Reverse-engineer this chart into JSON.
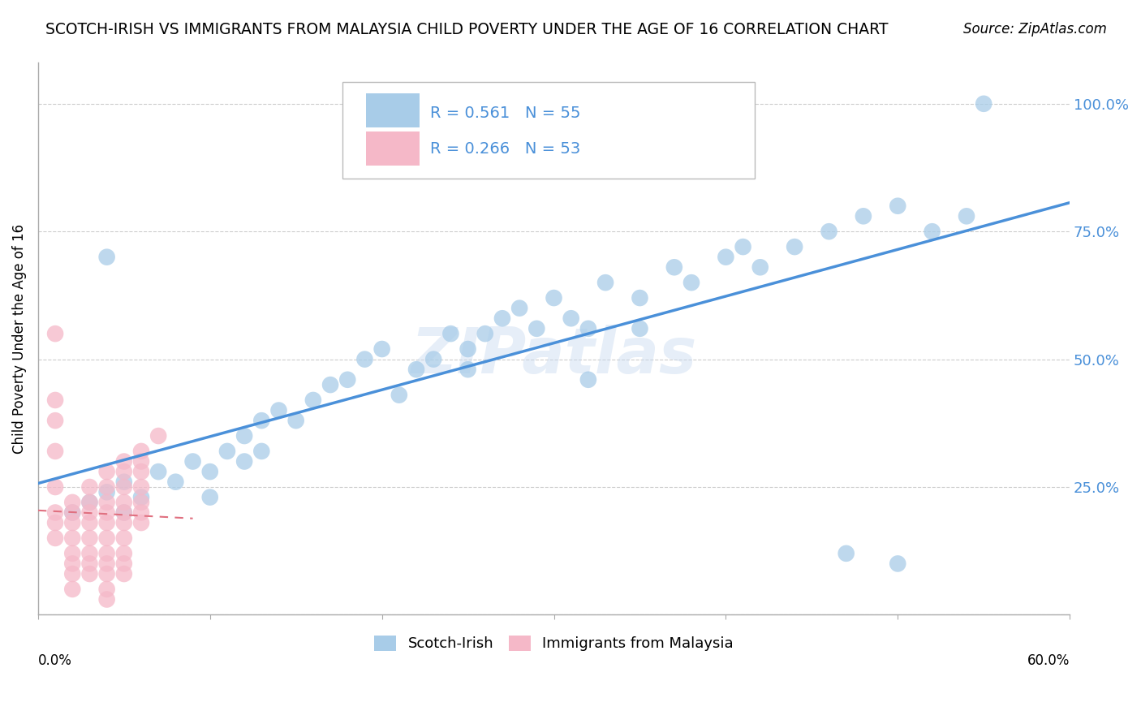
{
  "title": "SCOTCH-IRISH VS IMMIGRANTS FROM MALAYSIA CHILD POVERTY UNDER THE AGE OF 16 CORRELATION CHART",
  "source": "Source: ZipAtlas.com",
  "ylabel": "Child Poverty Under the Age of 16",
  "xlim": [
    0.0,
    0.6
  ],
  "ylim": [
    0.0,
    1.08
  ],
  "yticks": [
    0.0,
    0.25,
    0.5,
    0.75,
    1.0
  ],
  "ytick_labels": [
    "",
    "25.0%",
    "50.0%",
    "75.0%",
    "100.0%"
  ],
  "blue_R": 0.561,
  "blue_N": 55,
  "pink_R": 0.266,
  "pink_N": 53,
  "legend_label_blue": "Scotch-Irish",
  "legend_label_pink": "Immigrants from Malaysia",
  "blue_color": "#a8cce8",
  "pink_color": "#f5b8c8",
  "blue_line_color": "#4a90d9",
  "pink_line_color": "#e07080",
  "tick_color": "#4a90d9",
  "watermark": "ZIPatlas",
  "blue_scatter_x": [
    0.02,
    0.03,
    0.04,
    0.05,
    0.05,
    0.06,
    0.07,
    0.08,
    0.09,
    0.1,
    0.1,
    0.11,
    0.12,
    0.12,
    0.13,
    0.13,
    0.14,
    0.15,
    0.16,
    0.17,
    0.18,
    0.19,
    0.2,
    0.21,
    0.22,
    0.23,
    0.24,
    0.25,
    0.25,
    0.26,
    0.27,
    0.28,
    0.29,
    0.3,
    0.31,
    0.32,
    0.33,
    0.35,
    0.37,
    0.38,
    0.4,
    0.41,
    0.42,
    0.44,
    0.46,
    0.48,
    0.5,
    0.52,
    0.54,
    0.32,
    0.47,
    0.5,
    0.55,
    0.35,
    0.04
  ],
  "blue_scatter_y": [
    0.2,
    0.22,
    0.24,
    0.2,
    0.26,
    0.23,
    0.28,
    0.26,
    0.3,
    0.23,
    0.28,
    0.32,
    0.35,
    0.3,
    0.38,
    0.32,
    0.4,
    0.38,
    0.42,
    0.45,
    0.46,
    0.5,
    0.52,
    0.43,
    0.48,
    0.5,
    0.55,
    0.52,
    0.48,
    0.55,
    0.58,
    0.6,
    0.56,
    0.62,
    0.58,
    0.56,
    0.65,
    0.62,
    0.68,
    0.65,
    0.7,
    0.72,
    0.68,
    0.72,
    0.75,
    0.78,
    0.8,
    0.75,
    0.78,
    0.46,
    0.12,
    0.1,
    1.0,
    0.56,
    0.7
  ],
  "pink_scatter_x": [
    0.01,
    0.01,
    0.01,
    0.01,
    0.01,
    0.02,
    0.02,
    0.02,
    0.02,
    0.02,
    0.02,
    0.02,
    0.02,
    0.03,
    0.03,
    0.03,
    0.03,
    0.03,
    0.03,
    0.03,
    0.03,
    0.04,
    0.04,
    0.04,
    0.04,
    0.04,
    0.04,
    0.04,
    0.04,
    0.04,
    0.04,
    0.04,
    0.05,
    0.05,
    0.05,
    0.05,
    0.05,
    0.05,
    0.05,
    0.05,
    0.05,
    0.05,
    0.06,
    0.06,
    0.06,
    0.06,
    0.06,
    0.06,
    0.06,
    0.07,
    0.01,
    0.01,
    0.01
  ],
  "pink_scatter_y": [
    0.55,
    0.25,
    0.2,
    0.18,
    0.15,
    0.22,
    0.2,
    0.18,
    0.15,
    0.12,
    0.1,
    0.08,
    0.05,
    0.25,
    0.22,
    0.2,
    0.18,
    0.15,
    0.12,
    0.1,
    0.08,
    0.28,
    0.25,
    0.22,
    0.2,
    0.18,
    0.15,
    0.12,
    0.1,
    0.08,
    0.05,
    0.03,
    0.3,
    0.28,
    0.25,
    0.22,
    0.2,
    0.18,
    0.15,
    0.12,
    0.1,
    0.08,
    0.32,
    0.3,
    0.28,
    0.25,
    0.22,
    0.2,
    0.18,
    0.35,
    0.42,
    0.38,
    0.32
  ]
}
